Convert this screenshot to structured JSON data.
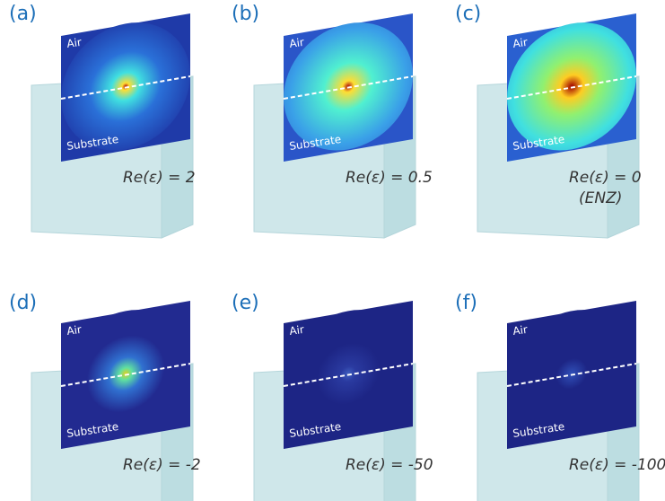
{
  "panels": [
    {
      "label": "(a)",
      "air": "Air",
      "substrate": "Substrate",
      "epsilon": "Re(ε) = 2"
    },
    {
      "label": "(b)",
      "air": "Air",
      "substrate": "Substrate",
      "epsilon": "Re(ε) = 0.5"
    },
    {
      "label": "(c)",
      "air": "Air",
      "substrate": "Substrate",
      "epsilon": "Re(ε) = 0",
      "note": "(ENZ)"
    },
    {
      "label": "(d)",
      "air": "Air",
      "substrate": "Substrate",
      "epsilon": "Re(ε) = -2"
    },
    {
      "label": "(e)",
      "air": "Air",
      "substrate": "Substrate",
      "epsilon": "Re(ε) = -50"
    },
    {
      "label": "(f)",
      "air": "Air",
      "substrate": "Substrate",
      "epsilon": "Re(ε) = -100"
    }
  ]
}
